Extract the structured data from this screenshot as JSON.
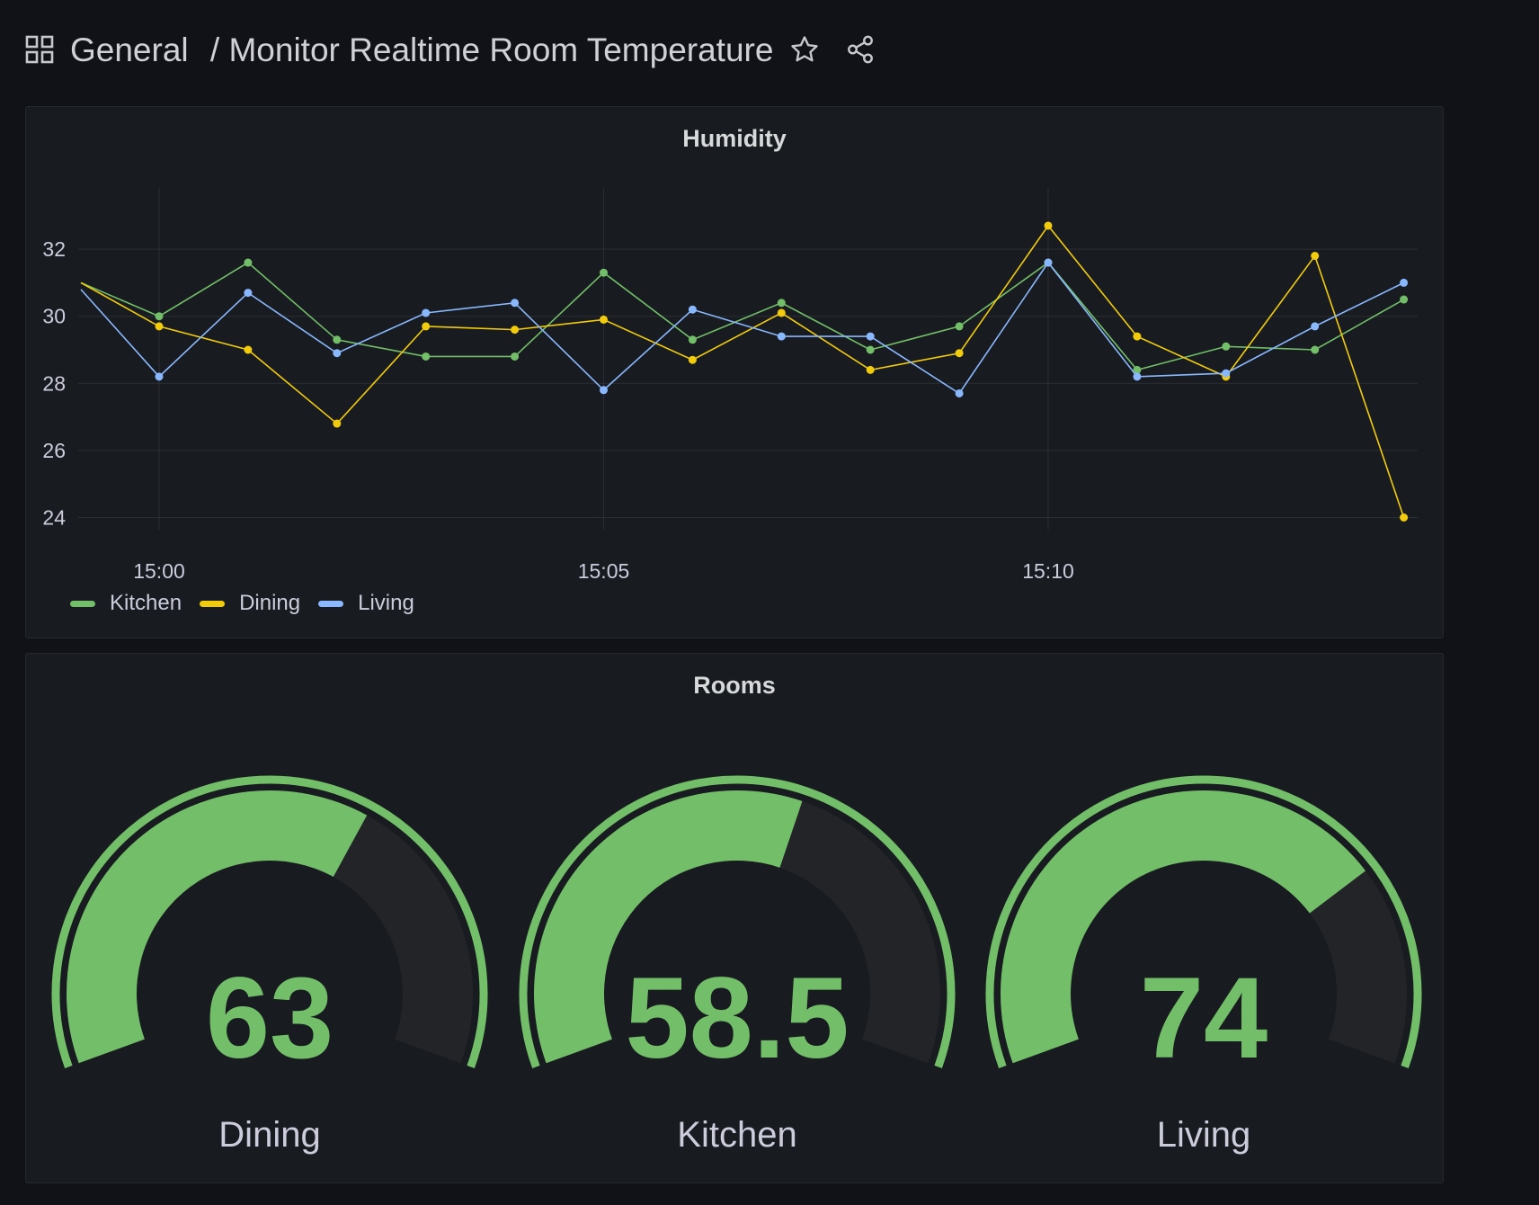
{
  "header": {
    "folder": "General",
    "separator": "/",
    "title": "Monitor Realtime Room Temperature",
    "icons": [
      "grid-icon",
      "star-icon",
      "share-icon"
    ]
  },
  "humidity_panel": {
    "title": "Humidity",
    "legend": [
      {
        "label": "Kitchen",
        "color": "#73bf69"
      },
      {
        "label": "Dining",
        "color": "#f2cc0c"
      },
      {
        "label": "Living",
        "color": "#8ab8ff"
      }
    ]
  },
  "rooms_panel": {
    "title": "Rooms",
    "gauges": [
      {
        "label": "Dining",
        "value": "63",
        "fill": 0.63
      },
      {
        "label": "Kitchen",
        "value": "58.5",
        "fill": 0.585
      },
      {
        "label": "Living",
        "value": "74",
        "fill": 0.74
      }
    ],
    "gauge_color": "#73bf69",
    "gauge_min": 50,
    "gauge_max": 75
  },
  "chart_data": {
    "type": "line",
    "title": "Humidity",
    "x_ticks": [
      "15:00",
      "15:05",
      "15:10"
    ],
    "x": [
      "14:59",
      "15:00",
      "15:01",
      "15:02",
      "15:03",
      "15:04",
      "15:05",
      "15:06",
      "15:07",
      "15:08",
      "15:09",
      "15:10",
      "15:11",
      "15:12",
      "15:13",
      "15:14"
    ],
    "y_ticks": [
      24,
      26,
      28,
      30,
      32
    ],
    "ylim": [
      23.5,
      33.5
    ],
    "grid": true,
    "legend_position": "bottom-left",
    "series": [
      {
        "name": "Kitchen",
        "color": "#73bf69",
        "values": [
          31.0,
          30.0,
          31.6,
          29.3,
          28.8,
          28.8,
          31.3,
          29.3,
          30.4,
          29.0,
          29.7,
          31.6,
          28.4,
          29.1,
          29.0,
          30.5
        ]
      },
      {
        "name": "Dining",
        "color": "#f2cc0c",
        "values": [
          31.0,
          29.7,
          29.0,
          26.8,
          29.7,
          29.6,
          29.9,
          28.7,
          30.1,
          28.4,
          28.9,
          32.7,
          29.4,
          28.2,
          31.8,
          24.0
        ]
      },
      {
        "name": "Living",
        "color": "#8ab8ff",
        "values": [
          30.8,
          28.2,
          30.7,
          28.9,
          30.1,
          30.4,
          27.8,
          30.2,
          29.4,
          29.4,
          27.7,
          31.6,
          28.2,
          28.3,
          29.7,
          31.0
        ]
      }
    ]
  }
}
